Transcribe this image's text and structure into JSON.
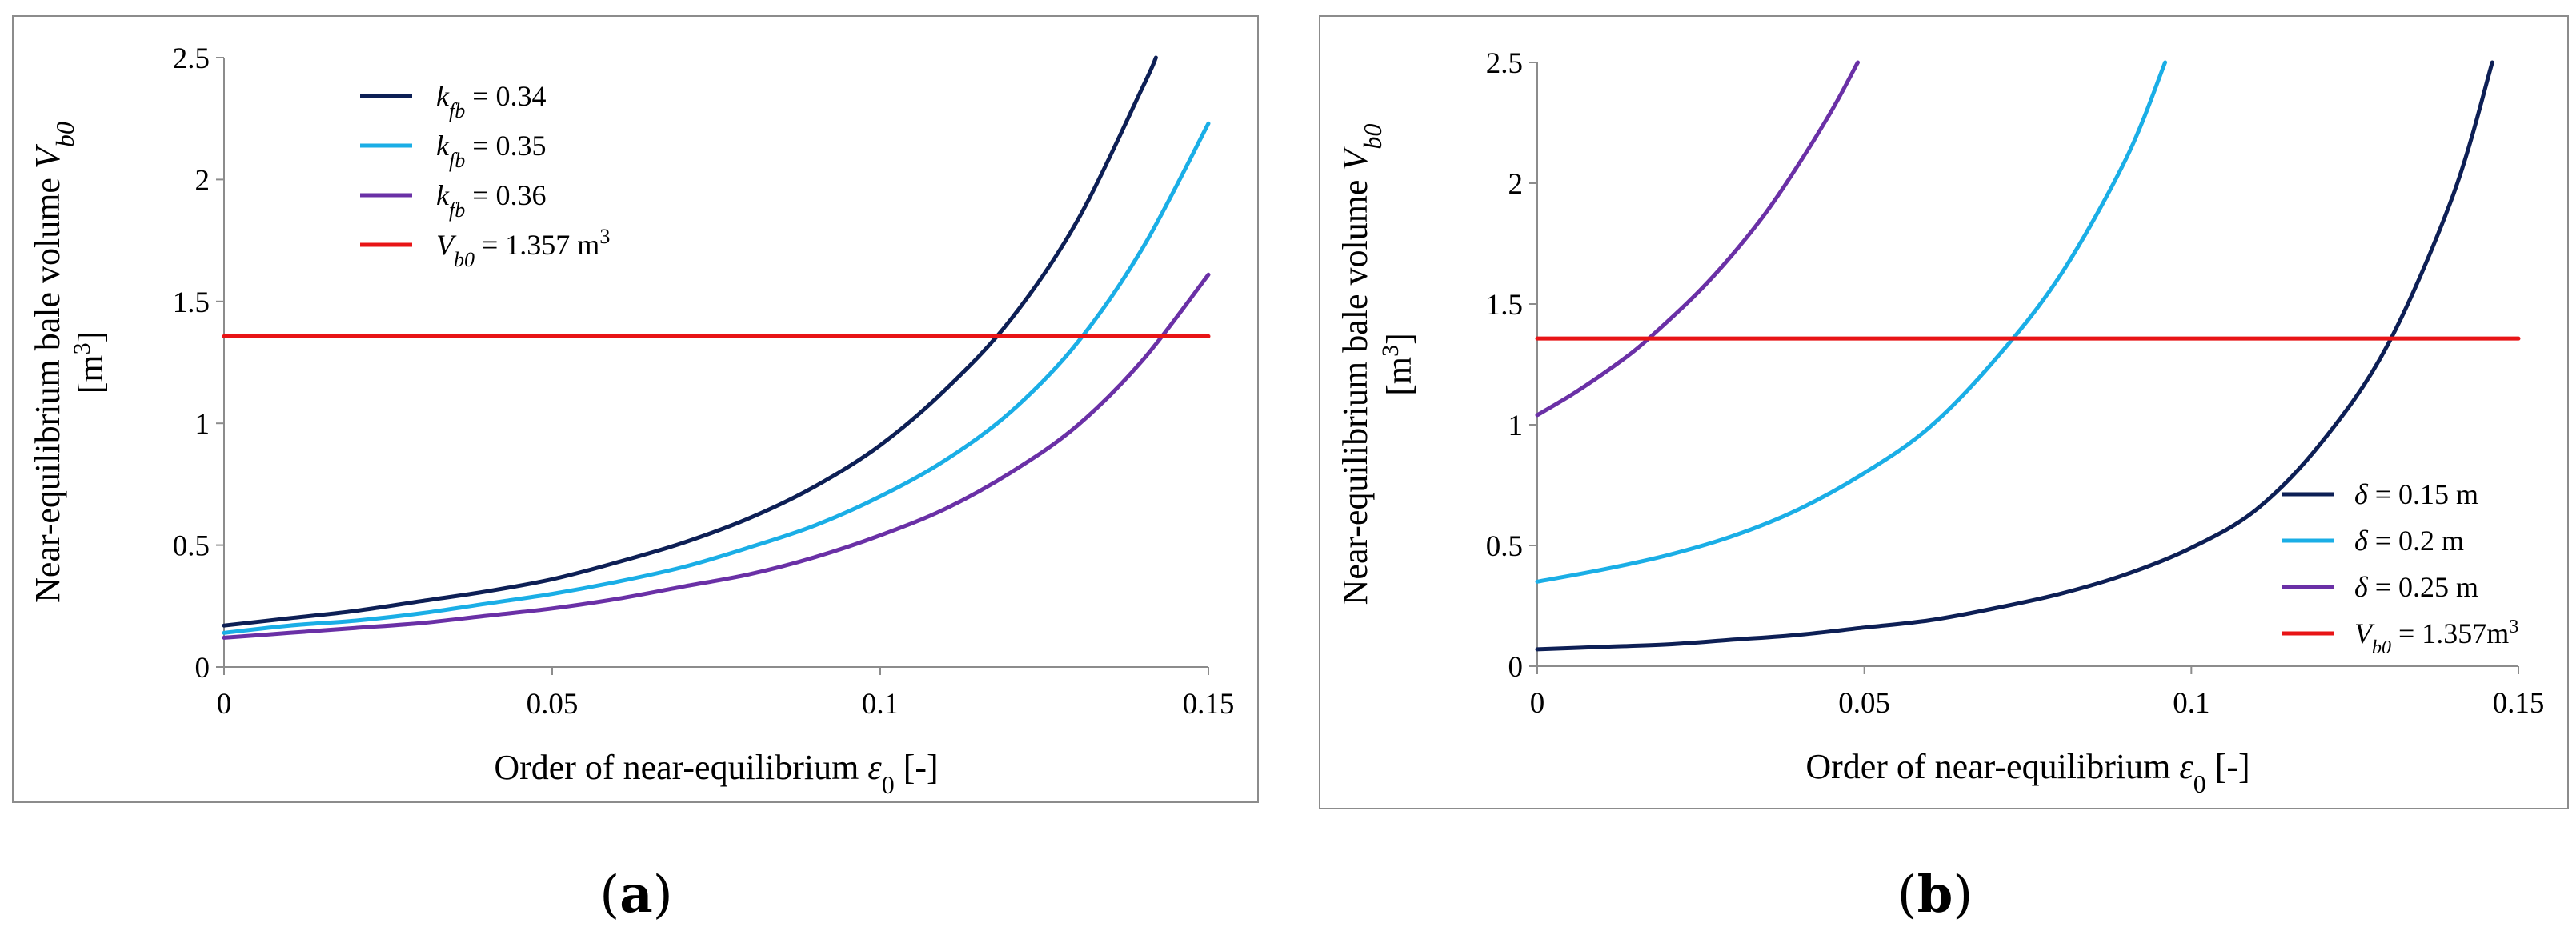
{
  "chart_data": [
    {
      "type": "line",
      "panel_label": "a",
      "xlabel": "Order of near-equilibrium",
      "xlabel_symbol": "ε",
      "xlabel_sub": "0",
      "xlabel_unit": "[-]",
      "ylabel_line1": "Near-equilibrium bale volume",
      "ylabel_symbol": "V",
      "ylabel_sub": "b0",
      "ylabel_unit_open": "[m",
      "ylabel_unit_sup": "3",
      "ylabel_unit_close": "]",
      "xlim": [
        0,
        0.15
      ],
      "ylim": [
        0,
        2.5
      ],
      "x_ticks": [
        0,
        0.05,
        0.1,
        0.15
      ],
      "x_tick_labels": [
        "0",
        "0.05",
        "0.1",
        "0.15"
      ],
      "y_ticks": [
        0,
        0.5,
        1,
        1.5,
        2,
        2.5
      ],
      "y_tick_labels": [
        "0",
        "0.5",
        "1",
        "1.5",
        "2",
        "2.5"
      ],
      "legend_position": "top-left",
      "series": [
        {
          "name": "k_fb = 0.34",
          "sym": "k",
          "sub": "fb",
          "rest": " = 0.34",
          "color": "#0d1f55",
          "x": [
            0,
            0.01,
            0.02,
            0.03,
            0.04,
            0.05,
            0.06,
            0.07,
            0.08,
            0.09,
            0.1,
            0.11,
            0.12,
            0.13,
            0.14,
            0.142
          ],
          "y": [
            0.17,
            0.2,
            0.23,
            0.27,
            0.31,
            0.36,
            0.43,
            0.51,
            0.61,
            0.74,
            0.91,
            1.14,
            1.43,
            1.83,
            2.38,
            2.5
          ]
        },
        {
          "name": "k_fb = 0.35",
          "sym": "k",
          "sub": "fb",
          "rest": " = 0.35",
          "color": "#1aaee6",
          "x": [
            0,
            0.01,
            0.02,
            0.03,
            0.04,
            0.05,
            0.06,
            0.07,
            0.08,
            0.09,
            0.1,
            0.11,
            0.12,
            0.13,
            0.14,
            0.15
          ],
          "y": [
            0.14,
            0.17,
            0.19,
            0.22,
            0.26,
            0.3,
            0.35,
            0.41,
            0.49,
            0.58,
            0.7,
            0.85,
            1.05,
            1.33,
            1.72,
            2.23
          ]
        },
        {
          "name": "k_fb = 0.36",
          "sym": "k",
          "sub": "fb",
          "rest": " = 0.36",
          "color": "#6a30a6",
          "x": [
            0,
            0.01,
            0.02,
            0.03,
            0.04,
            0.05,
            0.06,
            0.07,
            0.08,
            0.09,
            0.1,
            0.11,
            0.12,
            0.13,
            0.14,
            0.15
          ],
          "y": [
            0.12,
            0.14,
            0.16,
            0.18,
            0.21,
            0.24,
            0.28,
            0.33,
            0.38,
            0.45,
            0.54,
            0.65,
            0.8,
            0.99,
            1.26,
            1.61
          ]
        },
        {
          "name": "V_b0 = 1.357 m3",
          "sym": "V",
          "sub": "b0",
          "rest": " = 1.357 m",
          "sup": "3",
          "color": "#e81416",
          "x": [
            0,
            0.15
          ],
          "y": [
            1.357,
            1.357
          ]
        }
      ]
    },
    {
      "type": "line",
      "panel_label": "b",
      "xlabel": "Order of near-equilibrium",
      "xlabel_symbol": "ε",
      "xlabel_sub": "0",
      "xlabel_unit": "[-]",
      "ylabel_line1": "Near-equilibrium bale volume",
      "ylabel_symbol": "V",
      "ylabel_sub": "b0",
      "ylabel_unit_open": "[m",
      "ylabel_unit_sup": "3",
      "ylabel_unit_close": "]",
      "xlim": [
        0,
        0.15
      ],
      "ylim": [
        0,
        2.5
      ],
      "x_ticks": [
        0,
        0.05,
        0.1,
        0.15
      ],
      "x_tick_labels": [
        "0",
        "0.05",
        "0.1",
        "0.15"
      ],
      "y_ticks": [
        0,
        0.5,
        1,
        1.5,
        2,
        2.5
      ],
      "y_tick_labels": [
        "0",
        "0.5",
        "1",
        "1.5",
        "2",
        "2.5"
      ],
      "legend_position": "bottom-right",
      "series": [
        {
          "name": "δ = 0.15 m",
          "sym": "δ",
          "sub": "",
          "rest": " = 0.15 m",
          "color": "#0d1f55",
          "x": [
            0,
            0.01,
            0.02,
            0.03,
            0.04,
            0.05,
            0.06,
            0.07,
            0.08,
            0.09,
            0.1,
            0.11,
            0.12,
            0.13,
            0.14,
            0.146
          ],
          "y": [
            0.07,
            0.08,
            0.09,
            0.11,
            0.13,
            0.16,
            0.19,
            0.24,
            0.3,
            0.38,
            0.49,
            0.65,
            0.93,
            1.33,
            1.95,
            2.5
          ]
        },
        {
          "name": "δ = 0.2 m",
          "sym": "δ",
          "sub": "",
          "rest": " = 0.2 m",
          "color": "#1aaee6",
          "x": [
            0,
            0.01,
            0.02,
            0.03,
            0.04,
            0.05,
            0.06,
            0.07,
            0.08,
            0.09,
            0.096
          ],
          "y": [
            0.35,
            0.4,
            0.46,
            0.54,
            0.65,
            0.8,
            0.99,
            1.27,
            1.62,
            2.1,
            2.5
          ]
        },
        {
          "name": "δ = 0.25 m",
          "sym": "δ",
          "sub": "",
          "rest": " = 0.25 m",
          "color": "#6a30a6",
          "x": [
            0,
            0.005,
            0.01,
            0.015,
            0.02,
            0.025,
            0.03,
            0.035,
            0.04,
            0.045,
            0.049
          ],
          "y": [
            1.04,
            1.12,
            1.21,
            1.31,
            1.43,
            1.56,
            1.71,
            1.88,
            2.08,
            2.3,
            2.5
          ]
        },
        {
          "name": "V_b0 = 1.357m3",
          "sym": "V",
          "sub": "b0",
          "rest": " = 1.357m",
          "sup": "3",
          "color": "#e81416",
          "x": [
            0,
            0.15
          ],
          "y": [
            1.357,
            1.357
          ]
        }
      ]
    }
  ]
}
